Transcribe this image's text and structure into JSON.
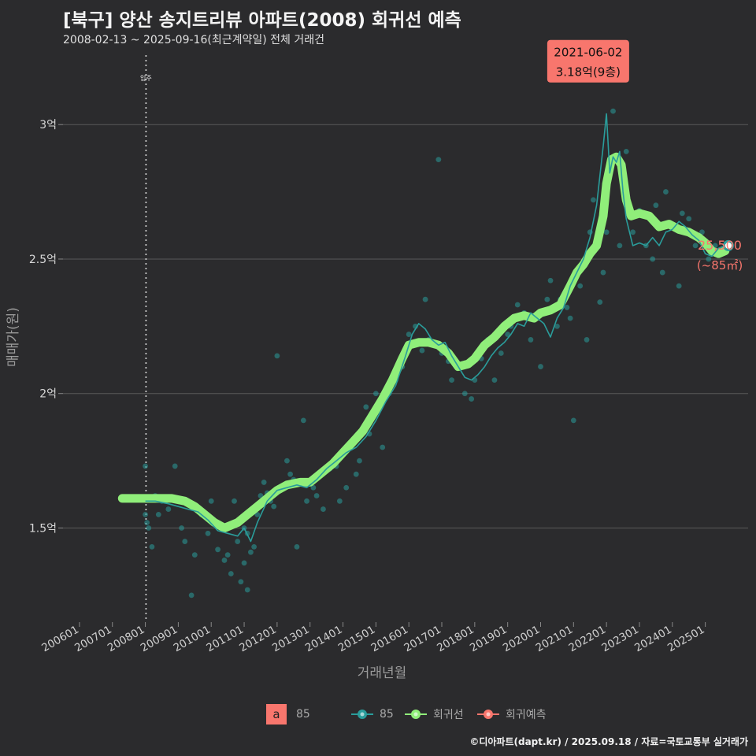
{
  "header": {
    "title": "[북구] 양산 송지트리뷰 아파트(2008) 회귀선 예측",
    "subtitle": "2008-02-13 ~ 2025-09-16(최근계약일) 전체 거래건"
  },
  "footer": {
    "credit": "©디아파트(dapt.kr) / 2025.09.18 / 자료=국토교통부 실거래가"
  },
  "colors": {
    "background": "#2b2b2d",
    "series_85": "#2a9d9b",
    "regression": "#90ee7a",
    "forecast": "#f8766d",
    "tooltip": "#f8766d",
    "grid": "#5a5a5a"
  },
  "legend": {
    "box_letter": "a",
    "box_label": "85",
    "items": [
      {
        "name": "85",
        "color": "#2a9d9b",
        "icon": "line-dot-icon"
      },
      {
        "name": "회귀선",
        "color": "#90ee7a",
        "icon": "line-dot-icon"
      },
      {
        "name": "회귀예측",
        "color": "#f8766d",
        "icon": "line-dot-icon"
      }
    ]
  },
  "chart_data": {
    "type": "line",
    "title": "[북구] 양산 송지트리뷰 아파트(2008) 회귀선 예측",
    "xlabel": "거래년월",
    "ylabel": "매매가(원)",
    "xlim": [
      2005.5,
      2026.3
    ],
    "ylim": [
      1.15,
      3.27
    ],
    "x_ticks": [
      2006,
      2007,
      2008,
      2009,
      2010,
      2011,
      2012,
      2013,
      2014,
      2015,
      2016,
      2017,
      2018,
      2019,
      2020,
      2021,
      2022,
      2023,
      2024,
      2025
    ],
    "x_tick_labels": [
      "200601",
      "200701",
      "200801",
      "200901",
      "201001",
      "201101",
      "201201",
      "201301",
      "201401",
      "201501",
      "201601",
      "201701",
      "201801",
      "201901",
      "202001",
      "202101",
      "202201",
      "202301",
      "202401",
      "202501"
    ],
    "y_ticks": [
      1.5,
      2,
      2.5,
      3
    ],
    "y_tick_labels": [
      "1.5억",
      "2억",
      "2.5억",
      "3억"
    ],
    "vline": {
      "x": 2008.02,
      "label": "입주"
    },
    "tooltip": {
      "x": 2021.42,
      "y": 3.18,
      "date": "2021-06-02",
      "value": "3.18억(9층)"
    },
    "end_label": {
      "value": "25,500",
      "area": "(~85㎡)"
    },
    "end_point": {
      "x": 2025.7,
      "y": 2.55
    },
    "series": [
      {
        "name": "회귀선",
        "x": [
          2007.3,
          2007.6,
          2008.0,
          2008.4,
          2008.8,
          2009.2,
          2009.5,
          2009.8,
          2010.1,
          2010.4,
          2010.8,
          2011.1,
          2011.4,
          2011.7,
          2012.0,
          2012.3,
          2012.7,
          2013.0,
          2013.3,
          2013.7,
          2014.0,
          2014.3,
          2014.6,
          2014.9,
          2015.2,
          2015.5,
          2015.8,
          2016.0,
          2016.3,
          2016.6,
          2016.9,
          2017.2,
          2017.5,
          2017.8,
          2018.0,
          2018.3,
          2018.6,
          2018.9,
          2019.2,
          2019.5,
          2019.8,
          2020.0,
          2020.3,
          2020.6,
          2020.9,
          2021.1,
          2021.3,
          2021.5,
          2021.7,
          2021.9,
          2022.0,
          2022.15,
          2022.3,
          2022.45,
          2022.6,
          2022.75,
          2023.0,
          2023.3,
          2023.6,
          2023.9,
          2024.2,
          2024.5,
          2024.8,
          2025.0,
          2025.2,
          2025.4,
          2025.6
        ],
        "y": [
          1.61,
          1.61,
          1.61,
          1.61,
          1.61,
          1.6,
          1.58,
          1.55,
          1.52,
          1.5,
          1.52,
          1.55,
          1.58,
          1.61,
          1.64,
          1.66,
          1.67,
          1.67,
          1.7,
          1.74,
          1.78,
          1.82,
          1.86,
          1.92,
          1.98,
          2.05,
          2.13,
          2.18,
          2.19,
          2.19,
          2.18,
          2.15,
          2.1,
          2.11,
          2.13,
          2.18,
          2.21,
          2.25,
          2.28,
          2.29,
          2.28,
          2.3,
          2.31,
          2.33,
          2.4,
          2.45,
          2.48,
          2.52,
          2.55,
          2.66,
          2.78,
          2.87,
          2.88,
          2.85,
          2.72,
          2.66,
          2.67,
          2.66,
          2.62,
          2.63,
          2.61,
          2.6,
          2.58,
          2.56,
          2.53,
          2.52,
          2.53
        ]
      },
      {
        "name": "85",
        "x": [
          2008.0,
          2008.3,
          2008.7,
          2009.0,
          2009.3,
          2009.6,
          2009.9,
          2010.2,
          2010.5,
          2010.8,
          2011.0,
          2011.2,
          2011.4,
          2011.7,
          2012.0,
          2012.3,
          2012.6,
          2012.9,
          2013.2,
          2013.5,
          2013.8,
          2014.1,
          2014.4,
          2014.7,
          2015.0,
          2015.3,
          2015.6,
          2015.9,
          2016.1,
          2016.3,
          2016.5,
          2016.7,
          2016.9,
          2017.1,
          2017.3,
          2017.5,
          2017.7,
          2017.9,
          2018.1,
          2018.3,
          2018.5,
          2018.7,
          2018.9,
          2019.1,
          2019.3,
          2019.5,
          2019.7,
          2019.9,
          2020.1,
          2020.3,
          2020.5,
          2020.7,
          2020.9,
          2021.1,
          2021.3,
          2021.5,
          2021.7,
          2021.9,
          2022.0,
          2022.1,
          2022.2,
          2022.3,
          2022.4,
          2022.5,
          2022.6,
          2022.8,
          2023.0,
          2023.2,
          2023.4,
          2023.6,
          2023.8,
          2024.0,
          2024.2,
          2024.4,
          2024.6,
          2024.8,
          2025.0,
          2025.2,
          2025.4,
          2025.6
        ],
        "y": [
          1.6,
          1.6,
          1.59,
          1.58,
          1.57,
          1.56,
          1.53,
          1.49,
          1.48,
          1.47,
          1.5,
          1.45,
          1.52,
          1.6,
          1.64,
          1.65,
          1.66,
          1.65,
          1.68,
          1.72,
          1.75,
          1.78,
          1.8,
          1.84,
          1.9,
          1.97,
          2.03,
          2.14,
          2.22,
          2.26,
          2.24,
          2.2,
          2.18,
          2.19,
          2.14,
          2.1,
          2.06,
          2.05,
          2.07,
          2.1,
          2.14,
          2.17,
          2.19,
          2.22,
          2.26,
          2.25,
          2.3,
          2.28,
          2.26,
          2.21,
          2.28,
          2.32,
          2.4,
          2.45,
          2.5,
          2.58,
          2.7,
          2.92,
          3.04,
          2.82,
          2.88,
          2.86,
          2.9,
          2.75,
          2.65,
          2.55,
          2.56,
          2.55,
          2.58,
          2.55,
          2.6,
          2.61,
          2.64,
          2.62,
          2.59,
          2.57,
          2.52,
          2.51,
          2.54,
          2.55
        ]
      }
    ],
    "scatter": {
      "name": "85",
      "x": [
        2008.0,
        2008.0,
        2008.05,
        2008.1,
        2008.2,
        2008.3,
        2008.4,
        2008.5,
        2008.7,
        2008.9,
        2009.1,
        2009.2,
        2009.4,
        2009.5,
        2009.7,
        2009.9,
        2010.0,
        2010.2,
        2010.4,
        2010.5,
        2010.6,
        2010.7,
        2010.8,
        2010.9,
        2011.0,
        2011.0,
        2011.1,
        2011.1,
        2011.2,
        2011.3,
        2011.4,
        2011.5,
        2011.6,
        2011.7,
        2011.8,
        2011.9,
        2012.0,
        2012.1,
        2012.3,
        2012.4,
        2012.5,
        2012.6,
        2012.8,
        2012.9,
        2013.1,
        2013.2,
        2013.4,
        2013.6,
        2013.8,
        2013.9,
        2014.1,
        2014.2,
        2014.4,
        2014.5,
        2014.7,
        2014.8,
        2015.0,
        2015.1,
        2015.2,
        2015.4,
        2015.6,
        2015.8,
        2016.0,
        2016.2,
        2016.4,
        2016.5,
        2016.6,
        2016.9,
        2017.0,
        2017.2,
        2017.3,
        2017.5,
        2017.7,
        2017.9,
        2018.0,
        2018.2,
        2018.4,
        2018.6,
        2018.8,
        2019.0,
        2019.1,
        2019.3,
        2019.5,
        2019.7,
        2019.9,
        2020.0,
        2020.2,
        2020.3,
        2020.5,
        2020.6,
        2020.8,
        2020.9,
        2021.0,
        2021.2,
        2021.4,
        2021.5,
        2021.6,
        2021.8,
        2021.9,
        2022.0,
        2022.2,
        2022.4,
        2022.6,
        2022.8,
        2023.0,
        2023.2,
        2023.4,
        2023.5,
        2023.7,
        2023.8,
        2024.0,
        2024.2,
        2024.3,
        2024.5,
        2024.7,
        2024.9,
        2025.1,
        2025.3,
        2025.5
      ],
      "y": [
        1.73,
        1.55,
        1.52,
        1.5,
        1.43,
        1.62,
        1.55,
        1.6,
        1.57,
        1.73,
        1.5,
        1.45,
        1.25,
        1.4,
        1.55,
        1.48,
        1.6,
        1.42,
        1.38,
        1.4,
        1.33,
        1.6,
        1.45,
        1.3,
        1.5,
        1.37,
        1.48,
        1.27,
        1.41,
        1.43,
        1.55,
        1.62,
        1.67,
        1.63,
        1.6,
        1.58,
        2.14,
        1.65,
        1.75,
        1.7,
        1.68,
        1.43,
        1.9,
        1.6,
        1.65,
        1.62,
        1.57,
        1.72,
        1.73,
        1.6,
        1.65,
        1.8,
        1.7,
        1.75,
        1.95,
        1.85,
        2.0,
        1.95,
        1.8,
        2.0,
        2.05,
        2.1,
        2.22,
        2.25,
        2.16,
        2.35,
        2.2,
        2.87,
        2.15,
        2.12,
        2.05,
        2.1,
        2.0,
        1.98,
        2.05,
        2.13,
        2.2,
        2.05,
        2.15,
        2.22,
        2.25,
        2.33,
        2.3,
        2.2,
        2.28,
        2.1,
        2.35,
        2.42,
        2.25,
        2.35,
        2.32,
        2.28,
        1.9,
        2.4,
        2.2,
        2.6,
        2.72,
        2.34,
        2.45,
        2.6,
        3.05,
        2.55,
        2.9,
        2.6,
        2.68,
        2.55,
        2.5,
        2.7,
        2.45,
        2.75,
        2.62,
        2.4,
        2.67,
        2.65,
        2.55,
        2.6,
        2.5,
        2.55,
        2.53
      ]
    }
  }
}
